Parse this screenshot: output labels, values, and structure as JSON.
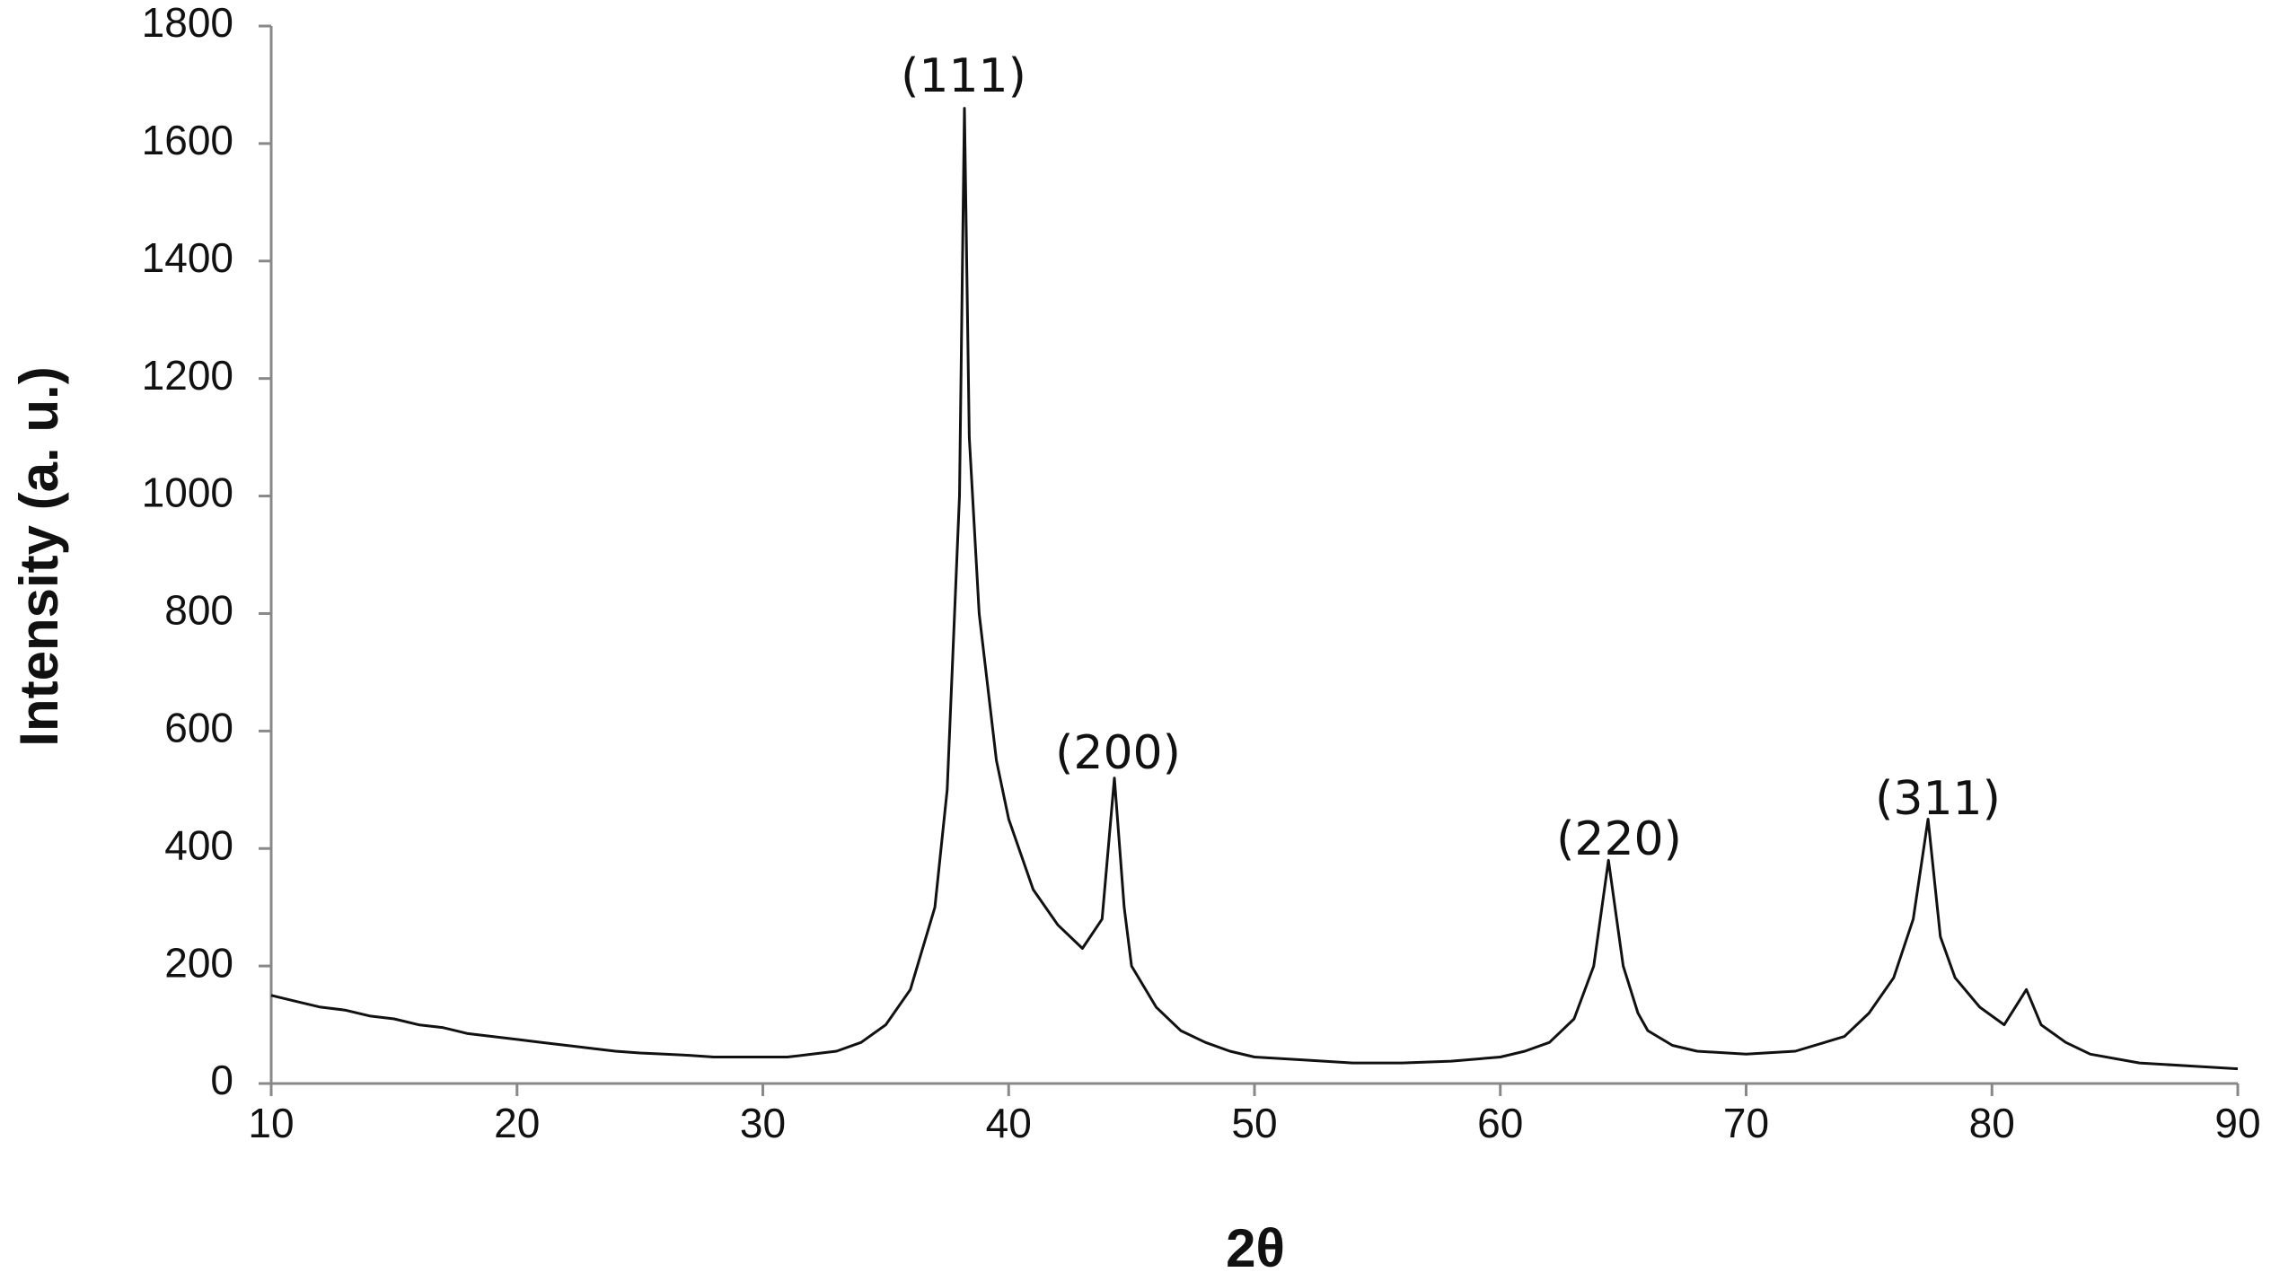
{
  "chart_data": {
    "type": "line",
    "x_label": "2θ",
    "y_label": "Intensity (a. u.)",
    "x": [
      10,
      11,
      12,
      13,
      14,
      15,
      16,
      17,
      18,
      19,
      20,
      21,
      22,
      23,
      24,
      25,
      26,
      27,
      28,
      29,
      30,
      31,
      32,
      33,
      34,
      35,
      36,
      37,
      37.5,
      38,
      38.2,
      38.4,
      38.8,
      39.5,
      40,
      41,
      42,
      43,
      43.8,
      44.3,
      44.7,
      45,
      46,
      47,
      48,
      49,
      50,
      52,
      54,
      56,
      58,
      60,
      61,
      62,
      63,
      63.8,
      64.4,
      65,
      65.6,
      66,
      67,
      68,
      70,
      72,
      74,
      75,
      76,
      76.8,
      77.4,
      77.9,
      78.5,
      79.5,
      80.5,
      81.4,
      82,
      83,
      84,
      86,
      88,
      90
    ],
    "values": [
      150,
      140,
      130,
      125,
      115,
      110,
      100,
      95,
      85,
      80,
      75,
      70,
      65,
      60,
      55,
      52,
      50,
      48,
      45,
      45,
      45,
      45,
      50,
      55,
      70,
      100,
      160,
      300,
      500,
      1000,
      1660,
      1100,
      800,
      550,
      450,
      330,
      270,
      230,
      280,
      520,
      300,
      200,
      130,
      90,
      70,
      55,
      45,
      40,
      35,
      35,
      38,
      45,
      55,
      70,
      110,
      200,
      380,
      200,
      120,
      90,
      65,
      55,
      50,
      55,
      80,
      120,
      180,
      280,
      450,
      250,
      180,
      130,
      100,
      160,
      100,
      70,
      50,
      35,
      30,
      25
    ],
    "color": "#111111",
    "xlim": [
      10,
      90
    ],
    "xticks": [
      10,
      20,
      30,
      40,
      50,
      60,
      70,
      80,
      90
    ],
    "ylim": [
      0,
      1800
    ],
    "yticks": [
      0,
      200,
      400,
      600,
      800,
      1000,
      1200,
      1400,
      1600,
      1800
    ],
    "grid": false,
    "annotations": [
      "(111)",
      "(200)",
      "(220)",
      "(311)"
    ]
  }
}
